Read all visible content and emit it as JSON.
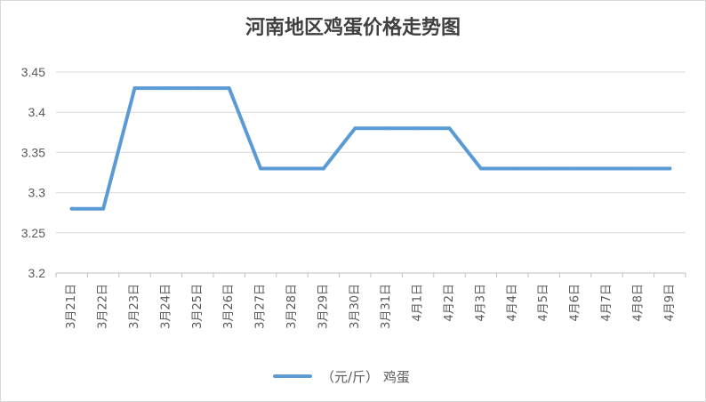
{
  "chart_data": {
    "type": "line",
    "title": "河南地区鸡蛋价格走势图",
    "categories": [
      "3月21日",
      "3月22日",
      "3月23日",
      "3月24日",
      "3月25日",
      "3月26日",
      "3月27日",
      "3月28日",
      "3月29日",
      "3月30日",
      "3月31日",
      "4月1日",
      "4月2日",
      "4月3日",
      "4月4日",
      "4月5日",
      "4月6日",
      "4月7日",
      "4月8日",
      "4月9日"
    ],
    "series": [
      {
        "name": "（元/斤） 鸡蛋",
        "values": [
          3.28,
          3.28,
          3.43,
          3.43,
          3.43,
          3.43,
          3.33,
          3.33,
          3.33,
          3.38,
          3.38,
          3.38,
          3.38,
          3.33,
          3.33,
          3.33,
          3.33,
          3.33,
          3.33,
          3.33
        ],
        "color": "#5b9bd5"
      }
    ],
    "y_ticks": [
      "3.2",
      "3.25",
      "3.3",
      "3.35",
      "3.4",
      "3.45"
    ],
    "ylim": [
      3.2,
      3.45
    ],
    "grid": "horizontal",
    "legend_position": "bottom"
  }
}
